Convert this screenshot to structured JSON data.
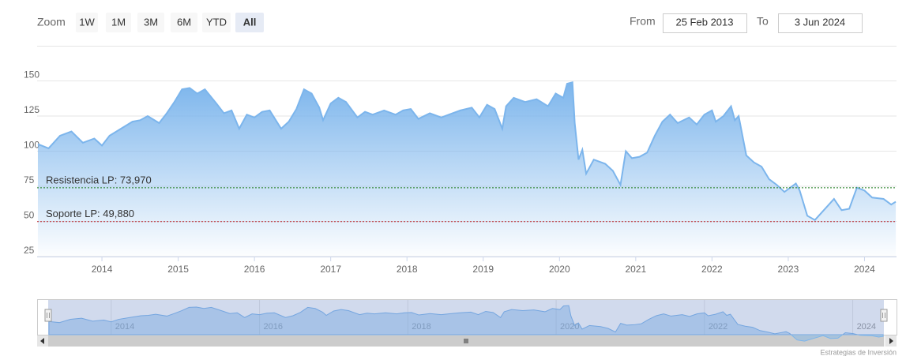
{
  "ui": {
    "zoom_label": "Zoom",
    "zoom_buttons": [
      "1W",
      "1M",
      "3M",
      "6M",
      "YTD",
      "All"
    ],
    "selected_button": 5,
    "from_label": "From",
    "from_value": "25 Feb 2013",
    "to_label": "To",
    "to_value": "3 Jun 2024",
    "credits": "Estrategias de Inversión"
  },
  "chart_data": {
    "type": "area",
    "color": "#7cb5ec",
    "x": [
      2013.16,
      2013.3,
      2013.45,
      2013.6,
      2013.75,
      2013.9,
      2014.0,
      2014.1,
      2014.25,
      2014.4,
      2014.5,
      2014.6,
      2014.75,
      2014.85,
      2014.95,
      2015.05,
      2015.15,
      2015.25,
      2015.35,
      2015.5,
      2015.6,
      2015.7,
      2015.8,
      2015.9,
      2016.0,
      2016.1,
      2016.2,
      2016.35,
      2016.45,
      2016.55,
      2016.65,
      2016.75,
      2016.85,
      2016.9,
      2017.0,
      2017.1,
      2017.2,
      2017.35,
      2017.45,
      2017.55,
      2017.7,
      2017.85,
      2017.95,
      2018.05,
      2018.15,
      2018.3,
      2018.45,
      2018.55,
      2018.7,
      2018.85,
      2018.95,
      2019.05,
      2019.15,
      2019.25,
      2019.3,
      2019.4,
      2019.55,
      2019.7,
      2019.85,
      2019.95,
      2020.05,
      2020.1,
      2020.17,
      2020.2,
      2020.25,
      2020.3,
      2020.35,
      2020.45,
      2020.6,
      2020.7,
      2020.8,
      2020.87,
      2020.95,
      2021.05,
      2021.15,
      2021.25,
      2021.35,
      2021.45,
      2021.55,
      2021.7,
      2021.8,
      2021.9,
      2022.0,
      2022.05,
      2022.15,
      2022.25,
      2022.3,
      2022.35,
      2022.4,
      2022.45,
      2022.55,
      2022.65,
      2022.75,
      2022.85,
      2022.95,
      2023.05,
      2023.1,
      2023.15,
      2023.25,
      2023.35,
      2023.5,
      2023.6,
      2023.7,
      2023.8,
      2023.9,
      2024.0,
      2024.1,
      2024.25,
      2024.35,
      2024.41
    ],
    "values": [
      105,
      102,
      111,
      114,
      106,
      109,
      104,
      111,
      116,
      121,
      122,
      125,
      120,
      127,
      135,
      144,
      145,
      141,
      144,
      134,
      127,
      129,
      116,
      126,
      124,
      128,
      129,
      116,
      121,
      130,
      144,
      141,
      131,
      122,
      134,
      138,
      135,
      124,
      128,
      126,
      129,
      126,
      129,
      130,
      123,
      127,
      124,
      126,
      129,
      131,
      124,
      133,
      130,
      116,
      132,
      138,
      135,
      137,
      132,
      141,
      138,
      148,
      149,
      120,
      94,
      101,
      84,
      94,
      91,
      86,
      76,
      100,
      95,
      96,
      99,
      111,
      121,
      126,
      120,
      124,
      119,
      126,
      129,
      121,
      125,
      132,
      122,
      125,
      111,
      97,
      92,
      89,
      80,
      76,
      71,
      75,
      77,
      72,
      54,
      51,
      60,
      66,
      58,
      59,
      74,
      72,
      67,
      66,
      62,
      64
    ],
    "xlim": [
      2013.15,
      2024.42
    ],
    "ylim": [
      25,
      175
    ],
    "xticks": [
      2014,
      2015,
      2016,
      2017,
      2018,
      2019,
      2020,
      2021,
      2022,
      2023,
      2024
    ],
    "yticks": [
      25,
      50,
      75,
      100,
      125,
      150
    ],
    "grid": true,
    "plot_lines": [
      {
        "value": 73.97,
        "label": "Resistencia LP: 73,970",
        "color": "#1a7a1a"
      },
      {
        "value": 49.88,
        "label": "Soporte LP: 49,880",
        "color": "#c0282d"
      }
    ],
    "navigator_xticks": [
      2014,
      2016,
      2018,
      2020,
      2022,
      2024
    ]
  }
}
